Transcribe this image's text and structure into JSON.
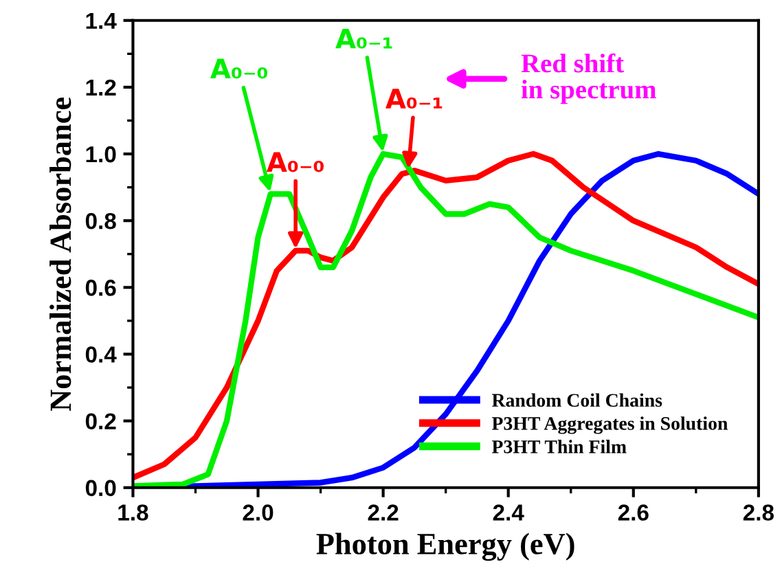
{
  "chart_data": {
    "type": "line",
    "xlabel": "Photon Energy (eV)",
    "ylabel": "Normalized Absorbance",
    "xlim": [
      1.8,
      2.8
    ],
    "xticks": [
      1.8,
      {
        "value": 2,
        "label": "2.0"
      },
      2.2,
      2.4,
      2.6,
      2.8
    ],
    "ylim": [
      0,
      1.4
    ],
    "yticks": [
      {
        "value": 0,
        "label": "0.0"
      },
      0.2,
      0.4,
      0.6,
      0.8,
      {
        "value": 1,
        "label": "1.0"
      },
      1.2,
      1.4
    ],
    "grid": false,
    "legend": "bottom right",
    "marker": "none",
    "line_style": "solid",
    "series": [
      {
        "name": "Random Coil Chains",
        "color": "#0000ff",
        "x": [
          1.8,
          1.9,
          2.0,
          2.1,
          2.15,
          2.2,
          2.25,
          2.3,
          2.35,
          2.4,
          2.45,
          2.5,
          2.55,
          2.6,
          2.64,
          2.7,
          2.75,
          2.8
        ],
        "values": [
          0.0,
          0.005,
          0.01,
          0.015,
          0.03,
          0.06,
          0.12,
          0.22,
          0.35,
          0.5,
          0.68,
          0.82,
          0.92,
          0.98,
          1.0,
          0.98,
          0.94,
          0.88
        ]
      },
      {
        "name": "P3HT Aggregates in Solution",
        "color": "#ff0000",
        "x": [
          1.8,
          1.85,
          1.9,
          1.95,
          2.0,
          2.03,
          2.06,
          2.08,
          2.1,
          2.12,
          2.15,
          2.2,
          2.23,
          2.25,
          2.3,
          2.35,
          2.4,
          2.44,
          2.47,
          2.52,
          2.56,
          2.6,
          2.7,
          2.75,
          2.8
        ],
        "values": [
          0.03,
          0.07,
          0.15,
          0.3,
          0.5,
          0.65,
          0.71,
          0.71,
          0.69,
          0.68,
          0.72,
          0.87,
          0.94,
          0.95,
          0.92,
          0.93,
          0.98,
          1.0,
          0.98,
          0.9,
          0.85,
          0.8,
          0.72,
          0.66,
          0.61
        ]
      },
      {
        "name": "P3HT Thin Film",
        "color": "#00ee00",
        "x": [
          1.8,
          1.88,
          1.92,
          1.95,
          1.98,
          2.0,
          2.02,
          2.05,
          2.08,
          2.1,
          2.12,
          2.15,
          2.18,
          2.2,
          2.23,
          2.26,
          2.3,
          2.33,
          2.37,
          2.4,
          2.45,
          2.5,
          2.6,
          2.7,
          2.8
        ],
        "values": [
          0.005,
          0.01,
          0.04,
          0.2,
          0.5,
          0.75,
          0.88,
          0.88,
          0.75,
          0.66,
          0.66,
          0.77,
          0.93,
          1.0,
          0.99,
          0.9,
          0.82,
          0.82,
          0.85,
          0.84,
          0.75,
          0.71,
          0.65,
          0.58,
          0.51
        ]
      }
    ],
    "annotations": [
      {
        "text": "A₀₋₀",
        "x": 2.02,
        "y": 0.88
      },
      {
        "text": "A₀₋₀",
        "x": 2.06,
        "y": 0.71
      },
      {
        "text": "A₀₋₁",
        "x": 2.2,
        "y": 1.0
      },
      {
        "text": "A₀₋₁",
        "x": 2.24,
        "y": 0.95
      },
      "Red shift\nin spectrum"
    ]
  }
}
